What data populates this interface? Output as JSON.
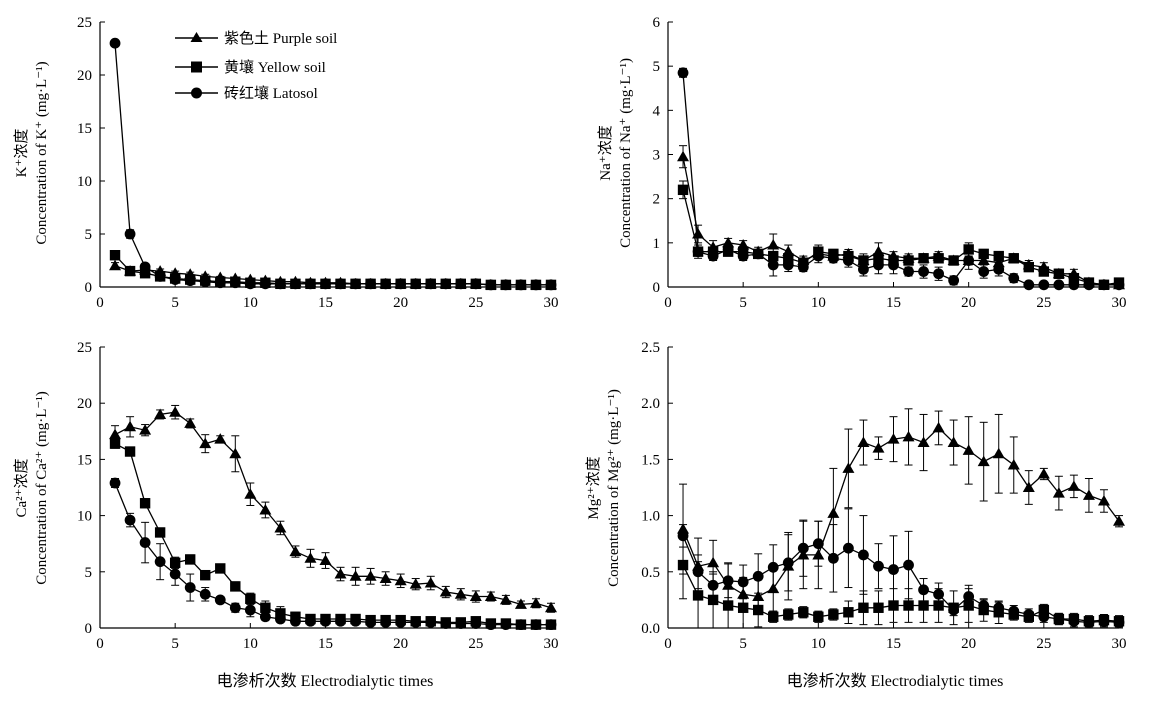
{
  "figure": {
    "x_title": "电渗析次数 Electrodialytic times",
    "legend": [
      {
        "label": "紫色土 Purple soil",
        "marker": "triangle"
      },
      {
        "label": "黄壤 Yellow soil",
        "marker": "square"
      },
      {
        "label": "砖红壤 Latosol",
        "marker": "circle"
      }
    ]
  },
  "chart_data": [
    {
      "type": "line",
      "id": "k",
      "ylabel_zh": "K⁺浓度",
      "ylabel_en": "Concentration of K⁺ (mg·L⁻¹)",
      "xlim": [
        0,
        30
      ],
      "ylim": [
        0,
        25
      ],
      "xticks": [
        0,
        5,
        10,
        15,
        20,
        25,
        30
      ],
      "yticks": [
        0,
        5,
        10,
        15,
        20,
        25
      ],
      "ytick_labels": [
        "0",
        "5",
        "10",
        "15",
        "20",
        "25"
      ],
      "x": [
        1,
        2,
        3,
        4,
        5,
        6,
        7,
        8,
        9,
        10,
        11,
        12,
        13,
        14,
        15,
        16,
        17,
        18,
        19,
        20,
        21,
        22,
        23,
        24,
        25,
        26,
        27,
        28,
        29,
        30
      ],
      "series": [
        {
          "marker": "triangle",
          "values": [
            2.0,
            1.5,
            1.6,
            1.5,
            1.3,
            1.2,
            1.0,
            0.9,
            0.8,
            0.7,
            0.6,
            0.5,
            0.5,
            0.4,
            0.4,
            0.4,
            0.3,
            0.3,
            0.3,
            0.3,
            0.3,
            0.3,
            0.3,
            0.3,
            0.3,
            0.2,
            0.2,
            0.2,
            0.2,
            0.2
          ],
          "errors": [
            0.3,
            0.2,
            0.2,
            0.2,
            0.2,
            0.2,
            0.2,
            0.1,
            0.1,
            0.1,
            0.1,
            0.1,
            0.1,
            0.1,
            0.1,
            0.1,
            0.1,
            0.1,
            0.1,
            0.1,
            0.1,
            0.1,
            0.1,
            0.1,
            0.1,
            0.1,
            0.1,
            0.1,
            0.1,
            0.1
          ]
        },
        {
          "marker": "square",
          "values": [
            3.0,
            1.5,
            1.3,
            1.0,
            0.8,
            0.7,
            0.6,
            0.5,
            0.5,
            0.4,
            0.4,
            0.3,
            0.3,
            0.3,
            0.3,
            0.3,
            0.3,
            0.3,
            0.3,
            0.3,
            0.3,
            0.3,
            0.3,
            0.3,
            0.3,
            0.2,
            0.2,
            0.2,
            0.2,
            0.2
          ],
          "errors": [
            0.3,
            0.2,
            0.2,
            0.1,
            0.1,
            0.1,
            0.1,
            0.1,
            0.1,
            0.1,
            0.1,
            0.1,
            0.1,
            0.1,
            0.1,
            0.1,
            0.1,
            0.1,
            0.1,
            0.1,
            0.1,
            0.1,
            0.1,
            0.1,
            0.1,
            0.1,
            0.1,
            0.1,
            0.1,
            0.1
          ]
        },
        {
          "marker": "circle",
          "values": [
            23.0,
            5.0,
            1.9,
            1.0,
            0.7,
            0.6,
            0.5,
            0.4,
            0.4,
            0.3,
            0.3,
            0.3,
            0.3,
            0.3,
            0.3,
            0.3,
            0.3,
            0.3,
            0.3,
            0.3,
            0.3,
            0.3,
            0.3,
            0.3,
            0.3,
            0.2,
            0.2,
            0.2,
            0.2,
            0.2
          ],
          "errors": [
            0.3,
            0.4,
            0.3,
            0.2,
            0.1,
            0.1,
            0.1,
            0.1,
            0.1,
            0.1,
            0.1,
            0.1,
            0.1,
            0.1,
            0.1,
            0.1,
            0.1,
            0.1,
            0.1,
            0.1,
            0.1,
            0.1,
            0.1,
            0.1,
            0.1,
            0.1,
            0.1,
            0.1,
            0.1,
            0.1
          ]
        }
      ]
    },
    {
      "type": "line",
      "id": "na",
      "ylabel_zh": "Na⁺浓度",
      "ylabel_en": "Concentration of Na⁺ (mg·L⁻¹)",
      "xlim": [
        0,
        30
      ],
      "ylim": [
        0,
        6
      ],
      "xticks": [
        0,
        5,
        10,
        15,
        20,
        25,
        30
      ],
      "yticks": [
        0,
        1,
        2,
        3,
        4,
        5,
        6
      ],
      "ytick_labels": [
        "0",
        "1",
        "2",
        "3",
        "4",
        "5",
        "6"
      ],
      "x": [
        1,
        2,
        3,
        4,
        5,
        6,
        7,
        8,
        9,
        10,
        11,
        12,
        13,
        14,
        15,
        16,
        17,
        18,
        19,
        20,
        21,
        22,
        23,
        24,
        25,
        26,
        27,
        28,
        29,
        30
      ],
      "series": [
        {
          "marker": "triangle",
          "values": [
            2.95,
            1.2,
            0.9,
            1.0,
            0.95,
            0.8,
            0.95,
            0.8,
            0.6,
            0.75,
            0.7,
            0.75,
            0.6,
            0.8,
            0.7,
            0.65,
            0.65,
            0.7,
            0.6,
            0.6,
            0.6,
            0.55,
            0.65,
            0.5,
            0.45,
            0.3,
            0.3,
            0.1,
            0.05,
            0.05
          ],
          "errors": [
            0.25,
            0.2,
            0.15,
            0.1,
            0.1,
            0.1,
            0.25,
            0.15,
            0.1,
            0.1,
            0.1,
            0.1,
            0.15,
            0.2,
            0.1,
            0.1,
            0.1,
            0.1,
            0.1,
            0.1,
            0.1,
            0.1,
            0.1,
            0.1,
            0.1,
            0.1,
            0.1,
            0.05,
            0.05,
            0.05
          ]
        },
        {
          "marker": "square",
          "values": [
            2.2,
            0.8,
            0.8,
            0.8,
            0.8,
            0.75,
            0.7,
            0.65,
            0.55,
            0.8,
            0.75,
            0.7,
            0.6,
            0.65,
            0.6,
            0.6,
            0.65,
            0.65,
            0.6,
            0.85,
            0.75,
            0.7,
            0.65,
            0.45,
            0.35,
            0.3,
            0.2,
            0.1,
            0.05,
            0.1
          ],
          "errors": [
            0.2,
            0.1,
            0.1,
            0.1,
            0.1,
            0.1,
            0.1,
            0.1,
            0.1,
            0.15,
            0.1,
            0.1,
            0.1,
            0.1,
            0.1,
            0.1,
            0.1,
            0.1,
            0.1,
            0.15,
            0.1,
            0.1,
            0.1,
            0.1,
            0.1,
            0.1,
            0.1,
            0.05,
            0.05,
            0.05
          ]
        },
        {
          "marker": "circle",
          "values": [
            4.85,
            0.8,
            0.7,
            0.85,
            0.7,
            0.75,
            0.5,
            0.5,
            0.45,
            0.7,
            0.65,
            0.6,
            0.4,
            0.5,
            0.5,
            0.35,
            0.35,
            0.3,
            0.15,
            0.6,
            0.35,
            0.4,
            0.2,
            0.05,
            0.05,
            0.05,
            0.05,
            0.05,
            0.05,
            0.05
          ],
          "errors": [
            0.1,
            0.15,
            0.1,
            0.1,
            0.1,
            0.1,
            0.25,
            0.15,
            0.1,
            0.15,
            0.1,
            0.15,
            0.15,
            0.2,
            0.2,
            0.1,
            0.15,
            0.15,
            0.1,
            0.2,
            0.15,
            0.15,
            0.1,
            0.05,
            0.05,
            0.05,
            0.05,
            0.05,
            0.05,
            0.05
          ]
        }
      ]
    },
    {
      "type": "line",
      "id": "ca",
      "ylabel_zh": "Ca²⁺浓度",
      "ylabel_en": "Concentration of Ca²⁺ (mg·L⁻¹)",
      "xlim": [
        0,
        30
      ],
      "ylim": [
        0,
        25
      ],
      "xticks": [
        0,
        5,
        10,
        15,
        20,
        25,
        30
      ],
      "yticks": [
        0,
        5,
        10,
        15,
        20,
        25
      ],
      "ytick_labels": [
        "0",
        "5",
        "10",
        "15",
        "20",
        "25"
      ],
      "x": [
        1,
        2,
        3,
        4,
        5,
        6,
        7,
        8,
        9,
        10,
        11,
        12,
        13,
        14,
        15,
        16,
        17,
        18,
        19,
        20,
        21,
        22,
        23,
        24,
        25,
        26,
        27,
        28,
        29,
        30
      ],
      "series": [
        {
          "marker": "triangle",
          "values": [
            17.2,
            17.9,
            17.6,
            19.0,
            19.2,
            18.2,
            16.4,
            16.8,
            15.5,
            11.9,
            10.5,
            8.9,
            6.8,
            6.2,
            6.0,
            4.8,
            4.6,
            4.6,
            4.4,
            4.2,
            3.9,
            4.0,
            3.2,
            3.0,
            2.8,
            2.8,
            2.5,
            2.1,
            2.2,
            1.8
          ],
          "errors": [
            0.8,
            0.9,
            0.5,
            0.4,
            0.6,
            0.4,
            0.8,
            0.3,
            1.6,
            1.0,
            0.7,
            0.6,
            0.5,
            0.8,
            0.7,
            0.6,
            0.8,
            0.7,
            0.6,
            0.6,
            0.5,
            0.6,
            0.5,
            0.5,
            0.5,
            0.4,
            0.4,
            0.3,
            0.4,
            0.4
          ]
        },
        {
          "marker": "square",
          "values": [
            16.4,
            15.7,
            11.1,
            8.5,
            5.8,
            6.1,
            4.7,
            5.3,
            3.7,
            2.6,
            1.8,
            1.3,
            1.0,
            0.8,
            0.8,
            0.8,
            0.8,
            0.7,
            0.7,
            0.7,
            0.6,
            0.6,
            0.5,
            0.5,
            0.6,
            0.4,
            0.4,
            0.3,
            0.3,
            0.3
          ],
          "errors": [
            0.4,
            0.4,
            0.4,
            0.4,
            0.5,
            0.4,
            0.4,
            0.3,
            0.4,
            0.5,
            0.6,
            0.6,
            0.4,
            0.3,
            0.3,
            0.3,
            0.3,
            0.3,
            0.2,
            0.2,
            0.2,
            0.2,
            0.2,
            0.2,
            0.3,
            0.1,
            0.1,
            0.1,
            0.1,
            0.1
          ]
        },
        {
          "marker": "circle",
          "values": [
            12.9,
            9.6,
            7.6,
            5.9,
            4.8,
            3.6,
            3.0,
            2.5,
            1.8,
            1.6,
            1.0,
            0.8,
            0.6,
            0.6,
            0.6,
            0.6,
            0.6,
            0.5,
            0.5,
            0.5,
            0.5,
            0.5,
            0.4,
            0.4,
            0.4,
            0.3,
            0.3,
            0.3,
            0.3,
            0.3
          ],
          "errors": [
            0.4,
            0.6,
            1.8,
            1.6,
            1.0,
            1.2,
            0.6,
            0.3,
            0.4,
            0.6,
            0.3,
            0.3,
            0.2,
            0.2,
            0.2,
            0.2,
            0.2,
            0.1,
            0.1,
            0.1,
            0.1,
            0.1,
            0.1,
            0.1,
            0.1,
            0.1,
            0.1,
            0.1,
            0.1,
            0.1
          ]
        }
      ]
    },
    {
      "type": "line",
      "id": "mg",
      "ylabel_zh": "Mg²⁺浓度",
      "ylabel_en": "Concentration of Mg²⁺ (mg·L⁻¹)",
      "xlim": [
        0,
        30
      ],
      "ylim": [
        0,
        2.5
      ],
      "xticks": [
        0,
        5,
        10,
        15,
        20,
        25,
        30
      ],
      "yticks": [
        0,
        0.5,
        1.0,
        1.5,
        2.0,
        2.5
      ],
      "ytick_labels": [
        "0.0",
        "0.5",
        "1.0",
        "1.5",
        "2.0",
        "2.5"
      ],
      "x": [
        1,
        2,
        3,
        4,
        5,
        6,
        7,
        8,
        9,
        10,
        11,
        12,
        13,
        14,
        15,
        16,
        17,
        18,
        19,
        20,
        21,
        22,
        23,
        24,
        25,
        26,
        27,
        28,
        29,
        30
      ],
      "series": [
        {
          "marker": "triangle",
          "values": [
            0.88,
            0.55,
            0.58,
            0.38,
            0.3,
            0.28,
            0.35,
            0.55,
            0.65,
            0.65,
            1.02,
            1.42,
            1.65,
            1.6,
            1.68,
            1.7,
            1.65,
            1.78,
            1.65,
            1.58,
            1.48,
            1.55,
            1.45,
            1.25,
            1.37,
            1.2,
            1.26,
            1.18,
            1.13,
            0.95
          ],
          "errors": [
            0.4,
            0.25,
            0.2,
            0.2,
            0.15,
            0.15,
            0.2,
            0.3,
            0.3,
            0.3,
            0.4,
            0.35,
            0.2,
            0.1,
            0.2,
            0.25,
            0.25,
            0.15,
            0.2,
            0.3,
            0.35,
            0.35,
            0.25,
            0.15,
            0.05,
            0.15,
            0.1,
            0.15,
            0.1,
            0.05
          ]
        },
        {
          "marker": "square",
          "values": [
            0.56,
            0.29,
            0.25,
            0.2,
            0.18,
            0.16,
            0.1,
            0.12,
            0.14,
            0.1,
            0.12,
            0.14,
            0.18,
            0.18,
            0.2,
            0.2,
            0.2,
            0.2,
            0.18,
            0.2,
            0.16,
            0.14,
            0.12,
            0.1,
            0.16,
            0.08,
            0.08,
            0.06,
            0.07,
            0.06
          ],
          "errors": [
            0.3,
            0.3,
            0.25,
            0.25,
            0.2,
            0.15,
            0.05,
            0.05,
            0.05,
            0.05,
            0.05,
            0.1,
            0.15,
            0.15,
            0.15,
            0.15,
            0.15,
            0.15,
            0.15,
            0.15,
            0.1,
            0.1,
            0.05,
            0.05,
            0.05,
            0.05,
            0.05,
            0.05,
            0.05,
            0.05
          ]
        },
        {
          "marker": "circle",
          "values": [
            0.82,
            0.5,
            0.38,
            0.42,
            0.41,
            0.46,
            0.54,
            0.58,
            0.71,
            0.75,
            0.62,
            0.71,
            0.65,
            0.55,
            0.52,
            0.56,
            0.34,
            0.3,
            0.16,
            0.28,
            0.2,
            0.18,
            0.15,
            0.12,
            0.1,
            0.08,
            0.06,
            0.05,
            0.06,
            0.05
          ],
          "errors": [
            0.1,
            0.15,
            0.1,
            0.15,
            0.15,
            0.2,
            0.2,
            0.25,
            0.25,
            0.2,
            0.3,
            0.35,
            0.35,
            0.2,
            0.3,
            0.3,
            0.1,
            0.1,
            0.05,
            0.1,
            0.05,
            0.05,
            0.05,
            0.05,
            0.05,
            0.05,
            0.05,
            0.05,
            0.05,
            0.05
          ]
        }
      ]
    }
  ]
}
